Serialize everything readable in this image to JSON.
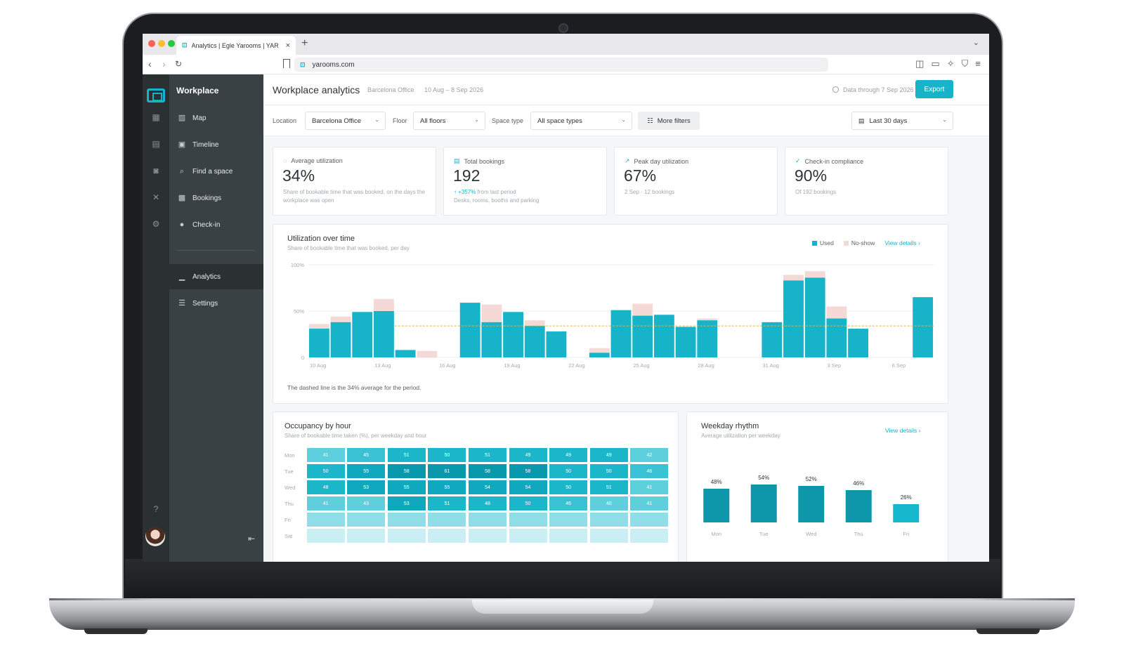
{
  "browser": {
    "tab_title": "Analytics | Egle Yarooms | YAR",
    "tab_icon": "yarooms-logo-icon",
    "url": "yarooms.com"
  },
  "sidebar": {
    "workspace": "Workplace",
    "items": [
      {
        "label": "Map",
        "icon": "map-icon"
      },
      {
        "label": "Timeline",
        "icon": "timeline-icon"
      },
      {
        "label": "Find a space",
        "icon": "search-icon"
      },
      {
        "label": "Bookings",
        "icon": "bookings-icon"
      },
      {
        "label": "Check-in",
        "icon": "location-pin-icon"
      },
      {
        "label": "Analytics",
        "icon": "bar-chart-icon",
        "active": true
      },
      {
        "label": "Settings",
        "icon": "sliders-icon"
      }
    ]
  },
  "header": {
    "title": "Workplace analytics",
    "office": "Barcelona Office",
    "date_range": "10 Aug – 8 Sep 2026",
    "data_through": "Data through 7 Sep 2026",
    "export_label": "Export"
  },
  "filters": {
    "location_label": "Location",
    "location_value": "Barcelona Office",
    "floor_label": "Floor",
    "floor_value": "All floors",
    "space_type_label": "Space type",
    "space_type_value": "All space types",
    "more_filters": "More filters",
    "period_value": "Last 30 days"
  },
  "kpis": [
    {
      "label": "Average utilization",
      "value": "34%",
      "note": "Share of bookable time that was booked, on the days the workplace was open",
      "icon": "refresh-icon"
    },
    {
      "label": "Total bookings",
      "value": "192",
      "delta": "+357%",
      "delta_suffix": "from last period",
      "note": "Desks, rooms, booths and parking",
      "icon": "calendar-icon"
    },
    {
      "label": "Peak day utilization",
      "value": "67%",
      "note": "2 Sep · 12 bookings",
      "icon": "trend-up-icon"
    },
    {
      "label": "Check-in compliance",
      "value": "90%",
      "note": "Of 192 bookings",
      "icon": "user-check-icon"
    }
  ],
  "utilization": {
    "title": "Utilization over time",
    "subtitle": "Share of bookable time that was booked, per day",
    "legend_used": "Used",
    "legend_noshow": "No-show",
    "view_details": "View details",
    "footnote": "The dashed line is the 34% average for the period."
  },
  "occupancy": {
    "title": "Occupancy by hour",
    "subtitle": "Share of bookable time taken (%), per weekday and hour",
    "rows": [
      {
        "day": "Mon",
        "values": [
          "41",
          "45",
          "51",
          "50",
          "51",
          "49",
          "49",
          "49",
          "42"
        ]
      },
      {
        "day": "Tue",
        "values": [
          "50",
          "55",
          "58",
          "61",
          "58",
          "58",
          "50",
          "50",
          "46"
        ]
      },
      {
        "day": "Wed",
        "values": [
          "48",
          "53",
          "55",
          "55",
          "54",
          "54",
          "50",
          "51",
          "41"
        ]
      },
      {
        "day": "Thu",
        "values": [
          "41",
          "43",
          "53",
          "51",
          "48",
          "50",
          "46",
          "40",
          "41"
        ]
      },
      {
        "day": "Fri",
        "values": [
          "",
          "",
          "",
          "",
          "",
          "",
          "",
          "",
          ""
        ]
      },
      {
        "day": "Sat",
        "values": [
          "",
          "",
          "",
          "",
          "",
          "",
          "",
          "",
          ""
        ]
      }
    ]
  },
  "weekday": {
    "title": "Weekday rhythm",
    "subtitle": "Average utilization per weekday",
    "view_details": "View details"
  },
  "colors": {
    "accent": "#16b3c9",
    "noshow": "#f5d9d6",
    "sidebar": "#394145",
    "rail": "#2b3033"
  },
  "chart_data": [
    {
      "type": "bar",
      "title": "Utilization over time",
      "stacked": true,
      "ylim": [
        0,
        100
      ],
      "y_ticks": [
        "100%",
        "50%",
        "0"
      ],
      "average_line": 34,
      "x_tick_labels": [
        "10 Aug",
        "13 Aug",
        "16 Aug",
        "19 Aug",
        "22 Aug",
        "25 Aug",
        "28 Aug",
        "31 Aug",
        "3 Sep",
        "6 Sep"
      ],
      "categories": [
        "10 Aug",
        "11 Aug",
        "12 Aug",
        "13 Aug",
        "14 Aug",
        "15 Aug",
        "16 Aug",
        "17 Aug",
        "18 Aug",
        "19 Aug",
        "20 Aug",
        "21 Aug",
        "22 Aug",
        "23 Aug",
        "24 Aug",
        "25 Aug",
        "26 Aug",
        "27 Aug",
        "28 Aug",
        "29 Aug",
        "30 Aug",
        "31 Aug",
        "1 Sep",
        "2 Sep",
        "3 Sep",
        "4 Sep",
        "5 Sep",
        "6 Sep",
        "7 Sep"
      ],
      "series": [
        {
          "name": "Used",
          "values": [
            31,
            38,
            49,
            50,
            8,
            0,
            0,
            59,
            38,
            49,
            34,
            28,
            0,
            5,
            51,
            45,
            46,
            33,
            40,
            0,
            0,
            38,
            83,
            86,
            42,
            31,
            0,
            0,
            65
          ]
        },
        {
          "name": "No-show",
          "values": [
            5,
            6,
            0,
            13,
            0,
            7,
            0,
            0,
            19,
            0,
            6,
            0,
            0,
            5,
            0,
            13,
            0,
            0,
            2,
            0,
            0,
            0,
            6,
            7,
            13,
            0,
            0,
            0,
            0
          ]
        }
      ]
    },
    {
      "type": "bar",
      "title": "Weekday rhythm",
      "categories": [
        "Mon",
        "Tue",
        "Wed",
        "Thu",
        "Fri"
      ],
      "values": [
        48,
        54,
        52,
        46,
        26
      ],
      "labels": [
        "48%",
        "54%",
        "52%",
        "46%",
        "26%"
      ]
    }
  ]
}
